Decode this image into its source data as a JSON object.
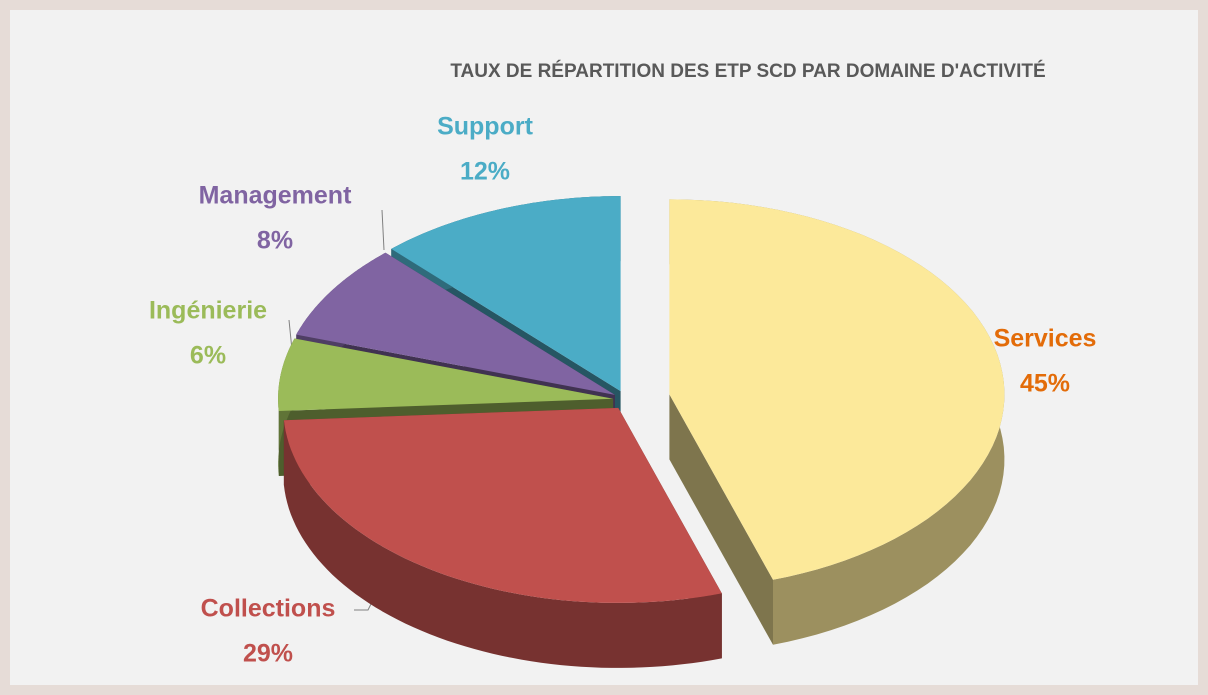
{
  "chart_data": {
    "type": "pie",
    "title": "TAUX DE RÉPARTITION DES ETP SCD PAR DOMAINE D'ACTIVITÉ",
    "categories": [
      "Services",
      "Collections",
      "Ingénierie",
      "Management",
      "Support"
    ],
    "values": [
      45,
      29,
      6,
      8,
      12
    ],
    "value_labels": [
      "45%",
      "29%",
      "6%",
      "8%",
      "12%"
    ],
    "colors": [
      "#fce99a",
      "#c0504d",
      "#9bbb59",
      "#8064a2",
      "#4bacc6"
    ],
    "label_colors": [
      "#e36c09",
      "#c0504d",
      "#9bbb59",
      "#8064a2",
      "#4bacc6"
    ]
  }
}
